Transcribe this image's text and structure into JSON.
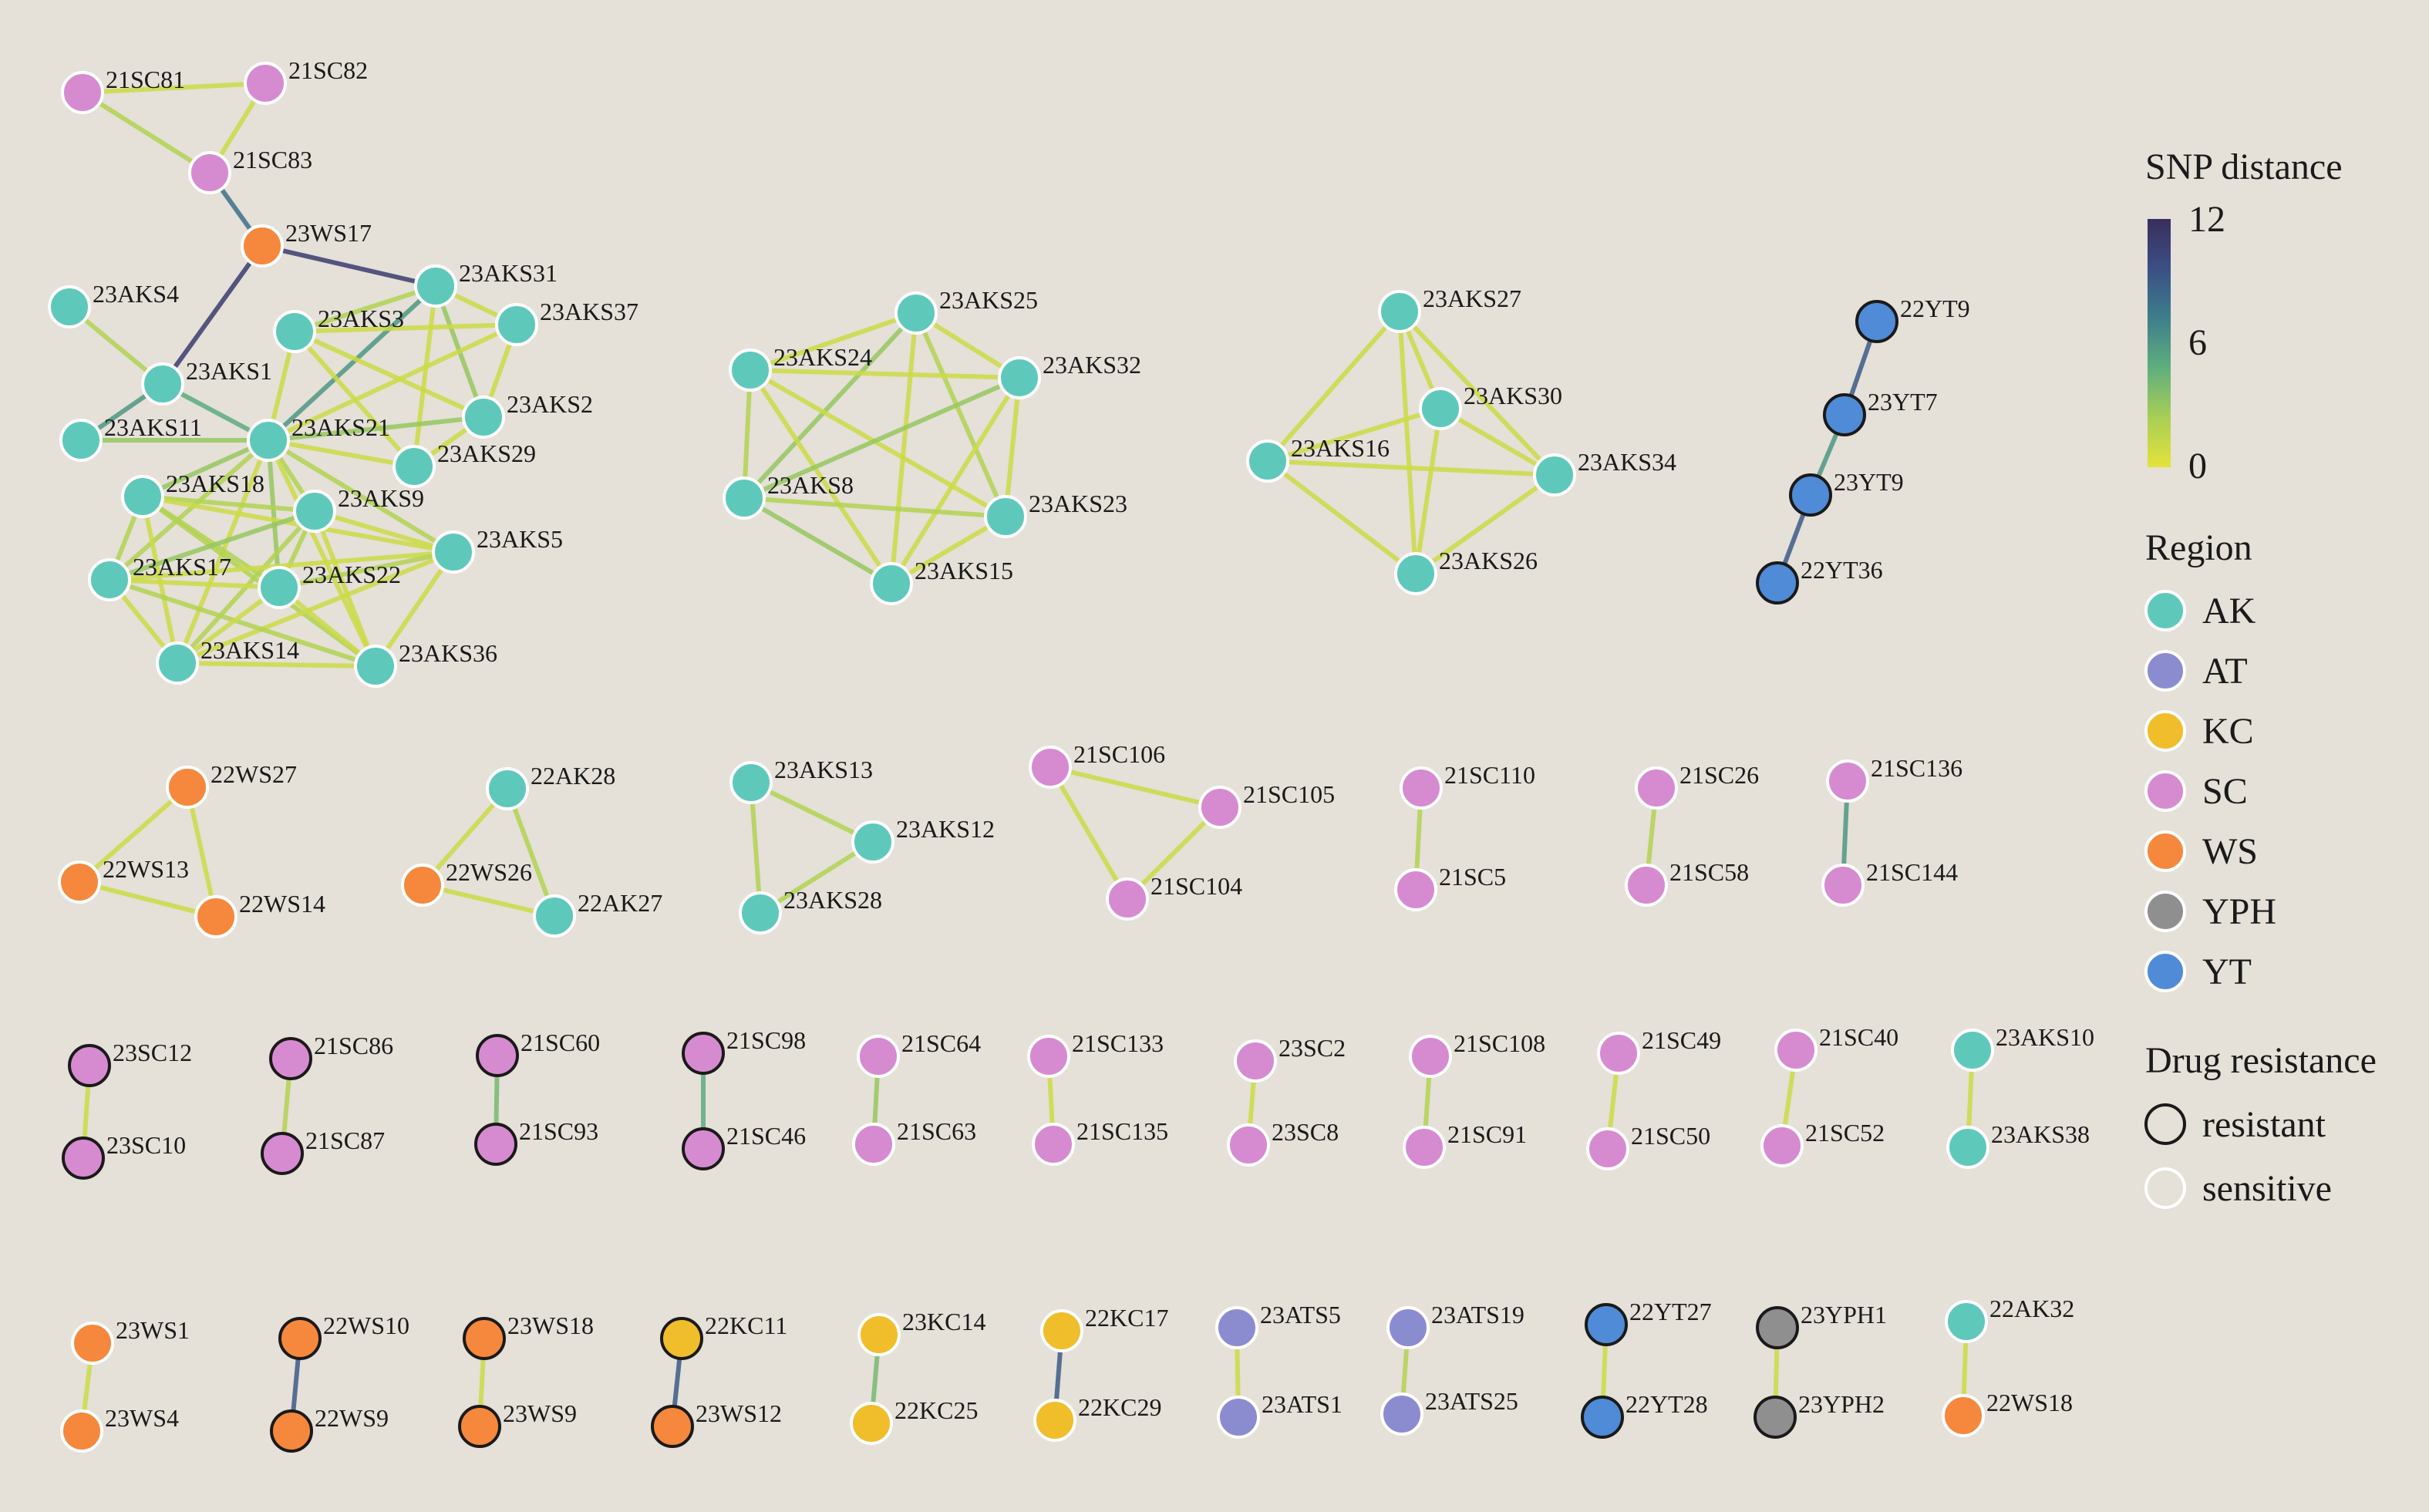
{
  "legend": {
    "snp_title": "SNP distance",
    "snp_ticks": [
      "12",
      "6",
      "0"
    ],
    "snp_max": 12,
    "snp_gradient": [
      "#e4e33a",
      "#a8cf55",
      "#5fae7e",
      "#3d7f8a",
      "#3b4f86",
      "#392e5c"
    ],
    "region_title": "Region",
    "regions": [
      {
        "name": "AK",
        "color": "#5ec9bb"
      },
      {
        "name": "AT",
        "color": "#8b8cd0"
      },
      {
        "name": "KC",
        "color": "#f0bd2b"
      },
      {
        "name": "SC",
        "color": "#d68bd1"
      },
      {
        "name": "WS",
        "color": "#f5883c"
      },
      {
        "name": "YPH",
        "color": "#8f8f8f"
      },
      {
        "name": "YT",
        "color": "#4f8bd6"
      }
    ],
    "drug_title": "Drug resistance",
    "drug": [
      {
        "name": "resistant",
        "outline": "#1a1a1a"
      },
      {
        "name": "sensitive",
        "outline": "#ffffff"
      }
    ]
  },
  "nodes": {
    "21SC81": {
      "r": "SC",
      "res": false
    },
    "21SC82": {
      "r": "SC",
      "res": false
    },
    "21SC83": {
      "r": "SC",
      "res": false
    },
    "23WS17": {
      "r": "WS",
      "res": false
    },
    "23AKS31": {
      "r": "AK",
      "res": false
    },
    "23AKS4": {
      "r": "AK",
      "res": false
    },
    "23AKS3": {
      "r": "AK",
      "res": false
    },
    "23AKS37": {
      "r": "AK",
      "res": false
    },
    "23AKS1": {
      "r": "AK",
      "res": false
    },
    "23AKS2": {
      "r": "AK",
      "res": false
    },
    "23AKS11": {
      "r": "AK",
      "res": false
    },
    "23AKS21": {
      "r": "AK",
      "res": false
    },
    "23AKS29": {
      "r": "AK",
      "res": false
    },
    "23AKS18": {
      "r": "AK",
      "res": false
    },
    "23AKS9": {
      "r": "AK",
      "res": false
    },
    "23AKS5": {
      "r": "AK",
      "res": false
    },
    "23AKS17": {
      "r": "AK",
      "res": false
    },
    "23AKS22": {
      "r": "AK",
      "res": false
    },
    "23AKS14": {
      "r": "AK",
      "res": false
    },
    "23AKS36": {
      "r": "AK",
      "res": false
    },
    "23AKS25": {
      "r": "AK",
      "res": false
    },
    "23AKS24": {
      "r": "AK",
      "res": false
    },
    "23AKS32": {
      "r": "AK",
      "res": false
    },
    "23AKS8": {
      "r": "AK",
      "res": false
    },
    "23AKS23": {
      "r": "AK",
      "res": false
    },
    "23AKS15": {
      "r": "AK",
      "res": false
    },
    "23AKS27": {
      "r": "AK",
      "res": false
    },
    "23AKS30": {
      "r": "AK",
      "res": false
    },
    "23AKS16": {
      "r": "AK",
      "res": false
    },
    "23AKS34": {
      "r": "AK",
      "res": false
    },
    "23AKS26": {
      "r": "AK",
      "res": false
    },
    "22YT9": {
      "r": "YT",
      "res": true
    },
    "23YT7": {
      "r": "YT",
      "res": true
    },
    "23YT9": {
      "r": "YT",
      "res": true
    },
    "22YT36": {
      "r": "YT",
      "res": true
    },
    "22WS27": {
      "r": "WS",
      "res": false
    },
    "22WS13": {
      "r": "WS",
      "res": false
    },
    "22WS14": {
      "r": "WS",
      "res": false
    },
    "22AK28": {
      "r": "AK",
      "res": false
    },
    "22WS26": {
      "r": "WS",
      "res": false
    },
    "22AK27": {
      "r": "AK",
      "res": false
    },
    "23AKS13": {
      "r": "AK",
      "res": false
    },
    "23AKS12": {
      "r": "AK",
      "res": false
    },
    "23AKS28": {
      "r": "AK",
      "res": false
    },
    "21SC106": {
      "r": "SC",
      "res": false
    },
    "21SC105": {
      "r": "SC",
      "res": false
    },
    "21SC104": {
      "r": "SC",
      "res": false
    },
    "21SC110": {
      "r": "SC",
      "res": false
    },
    "21SC5": {
      "r": "SC",
      "res": false
    },
    "21SC26": {
      "r": "SC",
      "res": false
    },
    "21SC58": {
      "r": "SC",
      "res": false
    },
    "21SC136": {
      "r": "SC",
      "res": false
    },
    "21SC144": {
      "r": "SC",
      "res": false
    },
    "23SC12": {
      "r": "SC",
      "res": true
    },
    "23SC10": {
      "r": "SC",
      "res": true
    },
    "21SC86": {
      "r": "SC",
      "res": true
    },
    "21SC87": {
      "r": "SC",
      "res": true
    },
    "21SC60": {
      "r": "SC",
      "res": true
    },
    "21SC93": {
      "r": "SC",
      "res": true
    },
    "21SC98": {
      "r": "SC",
      "res": true
    },
    "21SC46": {
      "r": "SC",
      "res": true
    },
    "21SC64": {
      "r": "SC",
      "res": false
    },
    "21SC63": {
      "r": "SC",
      "res": false
    },
    "21SC133": {
      "r": "SC",
      "res": false
    },
    "21SC135": {
      "r": "SC",
      "res": false
    },
    "23SC2": {
      "r": "SC",
      "res": false
    },
    "23SC8": {
      "r": "SC",
      "res": false
    },
    "21SC108": {
      "r": "SC",
      "res": false
    },
    "21SC91": {
      "r": "SC",
      "res": false
    },
    "21SC49": {
      "r": "SC",
      "res": false
    },
    "21SC50": {
      "r": "SC",
      "res": false
    },
    "21SC40": {
      "r": "SC",
      "res": false
    },
    "21SC52": {
      "r": "SC",
      "res": false
    },
    "23AKS10": {
      "r": "AK",
      "res": false
    },
    "23AKS38": {
      "r": "AK",
      "res": false
    },
    "23WS1": {
      "r": "WS",
      "res": false
    },
    "23WS4": {
      "r": "WS",
      "res": false
    },
    "22WS10": {
      "r": "WS",
      "res": true
    },
    "22WS9": {
      "r": "WS",
      "res": true
    },
    "23WS18": {
      "r": "WS",
      "res": true
    },
    "23WS9": {
      "r": "WS",
      "res": true
    },
    "22KC11": {
      "r": "KC",
      "res": true
    },
    "23WS12": {
      "r": "WS",
      "res": true
    },
    "23KC14": {
      "r": "KC",
      "res": false
    },
    "22KC25": {
      "r": "KC",
      "res": false
    },
    "22KC17": {
      "r": "KC",
      "res": false
    },
    "22KC29": {
      "r": "KC",
      "res": false
    },
    "23ATS5": {
      "r": "AT",
      "res": false
    },
    "23ATS1": {
      "r": "AT",
      "res": false
    },
    "23ATS19": {
      "r": "AT",
      "res": false
    },
    "23ATS25": {
      "r": "AT",
      "res": false
    },
    "22YT27": {
      "r": "YT",
      "res": true
    },
    "22YT28": {
      "r": "YT",
      "res": true
    },
    "23YPH1": {
      "r": "YPH",
      "res": true
    },
    "23YPH2": {
      "r": "YPH",
      "res": true
    },
    "22AK32": {
      "r": "AK",
      "res": false
    },
    "22WS18": {
      "r": "WS",
      "res": false
    }
  },
  "edges": [
    [
      "21SC81",
      "21SC82",
      1
    ],
    [
      "21SC81",
      "21SC83",
      2
    ],
    [
      "21SC82",
      "21SC83",
      1
    ],
    [
      "21SC83",
      "23WS17",
      8
    ],
    [
      "23WS17",
      "23AKS31",
      11
    ],
    [
      "23WS17",
      "23AKS1",
      11
    ],
    [
      "23AKS4",
      "23AKS1",
      2
    ],
    [
      "23AKS1",
      "23AKS11",
      6
    ],
    [
      "23AKS1",
      "23AKS21",
      5
    ],
    [
      "23AKS11",
      "23AKS21",
      3
    ],
    [
      "23AKS31",
      "23AKS21",
      6
    ],
    [
      "23AKS31",
      "23AKS2",
      3
    ],
    [
      "23AKS31",
      "23AKS37",
      1
    ],
    [
      "23AKS31",
      "23AKS3",
      2
    ],
    [
      "23AKS31",
      "23AKS29",
      1
    ],
    [
      "23AKS3",
      "23AKS37",
      1
    ],
    [
      "23AKS3",
      "23AKS2",
      1
    ],
    [
      "23AKS3",
      "23AKS21",
      1
    ],
    [
      "23AKS3",
      "23AKS29",
      1
    ],
    [
      "23AKS37",
      "23AKS2",
      1
    ],
    [
      "23AKS37",
      "23AKS21",
      1
    ],
    [
      "23AKS2",
      "23AKS21",
      3
    ],
    [
      "23AKS2",
      "23AKS29",
      1
    ],
    [
      "23AKS21",
      "23AKS29",
      1
    ],
    [
      "23AKS21",
      "23AKS18",
      3
    ],
    [
      "23AKS21",
      "23AKS9",
      2
    ],
    [
      "23AKS21",
      "23AKS5",
      2
    ],
    [
      "23AKS21",
      "23AKS17",
      2
    ],
    [
      "23AKS21",
      "23AKS22",
      3
    ],
    [
      "23AKS21",
      "23AKS14",
      1
    ],
    [
      "23AKS21",
      "23AKS36",
      1
    ],
    [
      "23AKS18",
      "23AKS9",
      2
    ],
    [
      "23AKS18",
      "23AKS5",
      1
    ],
    [
      "23AKS18",
      "23AKS17",
      2
    ],
    [
      "23AKS18",
      "23AKS22",
      2
    ],
    [
      "23AKS18",
      "23AKS14",
      1
    ],
    [
      "23AKS18",
      "23AKS36",
      2
    ],
    [
      "23AKS9",
      "23AKS5",
      1
    ],
    [
      "23AKS9",
      "23AKS17",
      3
    ],
    [
      "23AKS9",
      "23AKS22",
      2
    ],
    [
      "23AKS9",
      "23AKS14",
      2
    ],
    [
      "23AKS9",
      "23AKS36",
      1
    ],
    [
      "23AKS5",
      "23AKS17",
      1
    ],
    [
      "23AKS5",
      "23AKS22",
      2
    ],
    [
      "23AKS5",
      "23AKS14",
      1
    ],
    [
      "23AKS5",
      "23AKS36",
      1
    ],
    [
      "23AKS17",
      "23AKS22",
      1
    ],
    [
      "23AKS17",
      "23AKS14",
      1
    ],
    [
      "23AKS17",
      "23AKS36",
      2
    ],
    [
      "23AKS22",
      "23AKS14",
      1
    ],
    [
      "23AKS22",
      "23AKS36",
      1
    ],
    [
      "23AKS14",
      "23AKS36",
      1
    ],
    [
      "23AKS25",
      "23AKS24",
      1
    ],
    [
      "23AKS25",
      "23AKS32",
      1
    ],
    [
      "23AKS25",
      "23AKS8",
      3
    ],
    [
      "23AKS25",
      "23AKS23",
      2
    ],
    [
      "23AKS25",
      "23AKS15",
      1
    ],
    [
      "23AKS24",
      "23AKS32",
      1
    ],
    [
      "23AKS24",
      "23AKS8",
      2
    ],
    [
      "23AKS24",
      "23AKS23",
      1
    ],
    [
      "23AKS24",
      "23AKS15",
      1
    ],
    [
      "23AKS32",
      "23AKS8",
      3
    ],
    [
      "23AKS32",
      "23AKS23",
      1
    ],
    [
      "23AKS32",
      "23AKS15",
      1
    ],
    [
      "23AKS8",
      "23AKS23",
      2
    ],
    [
      "23AKS8",
      "23AKS15",
      3
    ],
    [
      "23AKS23",
      "23AKS15",
      1
    ],
    [
      "23AKS27",
      "23AKS30",
      1
    ],
    [
      "23AKS27",
      "23AKS16",
      1
    ],
    [
      "23AKS27",
      "23AKS34",
      1
    ],
    [
      "23AKS27",
      "23AKS26",
      1
    ],
    [
      "23AKS30",
      "23AKS16",
      1
    ],
    [
      "23AKS30",
      "23AKS34",
      1
    ],
    [
      "23AKS30",
      "23AKS26",
      1
    ],
    [
      "23AKS16",
      "23AKS34",
      1
    ],
    [
      "23AKS16",
      "23AKS26",
      1
    ],
    [
      "23AKS34",
      "23AKS26",
      1
    ],
    [
      "22YT9",
      "23YT7",
      9
    ],
    [
      "23YT7",
      "23YT9",
      6
    ],
    [
      "23YT9",
      "22YT36",
      9
    ],
    [
      "22WS27",
      "22WS13",
      1
    ],
    [
      "22WS27",
      "22WS14",
      1
    ],
    [
      "22WS13",
      "22WS14",
      1
    ],
    [
      "22AK28",
      "22WS26",
      1
    ],
    [
      "22AK28",
      "22AK27",
      2
    ],
    [
      "22WS26",
      "22AK27",
      1
    ],
    [
      "23AKS13",
      "23AKS12",
      2
    ],
    [
      "23AKS13",
      "23AKS28",
      2
    ],
    [
      "23AKS12",
      "23AKS28",
      2
    ],
    [
      "21SC106",
      "21SC105",
      1
    ],
    [
      "21SC106",
      "21SC104",
      1
    ],
    [
      "21SC105",
      "21SC104",
      1
    ],
    [
      "21SC110",
      "21SC5",
      2
    ],
    [
      "21SC26",
      "21SC58",
      2
    ],
    [
      "21SC136",
      "21SC144",
      6
    ],
    [
      "23SC12",
      "23SC10",
      1
    ],
    [
      "21SC86",
      "21SC87",
      2
    ],
    [
      "21SC60",
      "21SC93",
      4
    ],
    [
      "21SC98",
      "21SC46",
      5
    ],
    [
      "21SC64",
      "21SC63",
      3
    ],
    [
      "21SC133",
      "21SC135",
      1
    ],
    [
      "23SC2",
      "23SC8",
      1
    ],
    [
      "21SC108",
      "21SC91",
      2
    ],
    [
      "21SC49",
      "21SC50",
      1
    ],
    [
      "21SC40",
      "21SC52",
      1
    ],
    [
      "23AKS10",
      "23AKS38",
      1
    ],
    [
      "23WS1",
      "23WS4",
      1
    ],
    [
      "22WS10",
      "22WS9",
      9
    ],
    [
      "23WS18",
      "23WS9",
      1
    ],
    [
      "22KC11",
      "23WS12",
      9
    ],
    [
      "23KC14",
      "22KC25",
      4
    ],
    [
      "22KC17",
      "22KC29",
      9
    ],
    [
      "23ATS5",
      "23ATS1",
      1
    ],
    [
      "23ATS19",
      "23ATS25",
      2
    ],
    [
      "22YT27",
      "22YT28",
      1
    ],
    [
      "23YPH1",
      "23YPH2",
      1
    ],
    [
      "22AK32",
      "22WS18",
      1
    ]
  ]
}
